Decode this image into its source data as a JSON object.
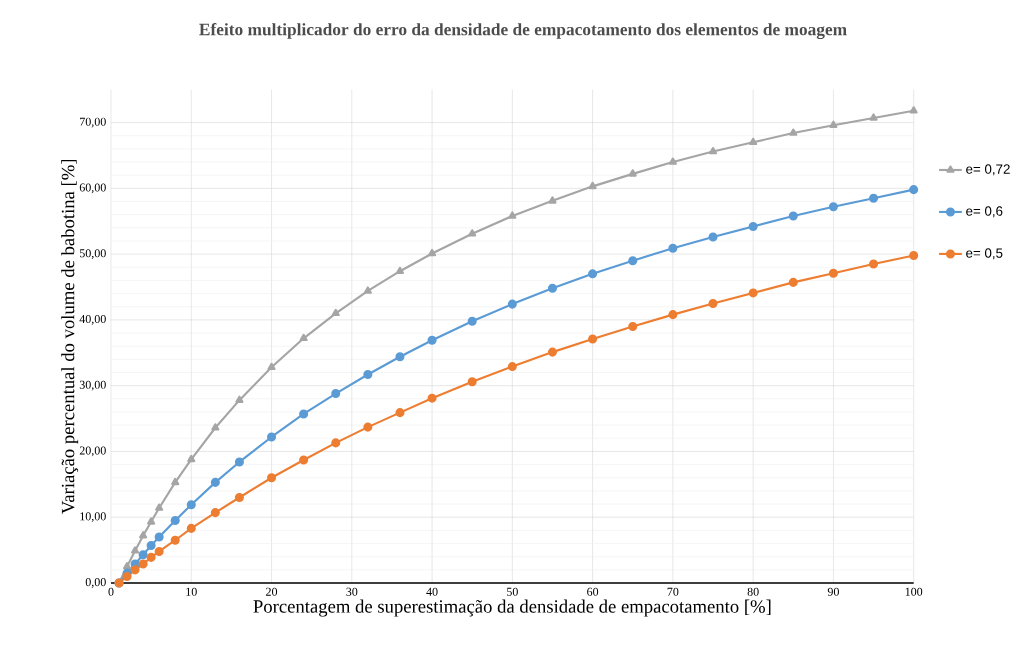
{
  "chart_data": {
    "type": "line",
    "title": "Efeito multiplicador do erro da densidade de empacotamento dos elementos de moagem",
    "xlabel": "Porcentagem de superestimação da densidade de empacotamento [%]",
    "ylabel": "Variação percentual do volume de babotina [%]",
    "x": [
      1,
      2,
      3,
      4,
      5,
      6,
      8,
      10,
      13,
      16,
      20,
      24,
      28,
      32,
      36,
      40,
      45,
      50,
      55,
      60,
      65,
      70,
      75,
      80,
      85,
      90,
      95,
      100
    ],
    "series": [
      {
        "name": "e= 0,72",
        "color": "#a5a5a5",
        "marker": "triangle",
        "values": [
          0,
          2.5,
          4.9,
          7.2,
          9.3,
          11.4,
          15.3,
          18.8,
          23.6,
          27.8,
          32.8,
          37.2,
          41.0,
          44.4,
          47.4,
          50.1,
          53.1,
          55.8,
          58.1,
          60.3,
          62.2,
          64.0,
          65.6,
          67.0,
          68.4,
          69.6,
          70.7,
          71.8
        ]
      },
      {
        "name": "e= 0,6",
        "color": "#5b9bd5",
        "marker": "circle",
        "values": [
          0,
          1.5,
          2.9,
          4.3,
          5.7,
          7.0,
          9.5,
          11.9,
          15.3,
          18.4,
          22.2,
          25.7,
          28.8,
          31.7,
          34.4,
          36.9,
          39.8,
          42.4,
          44.8,
          47.0,
          49.0,
          50.9,
          52.6,
          54.2,
          55.8,
          57.2,
          58.5,
          59.8
        ]
      },
      {
        "name": "e= 0,5",
        "color": "#ed7d31",
        "marker": "circle",
        "values": [
          0,
          1.0,
          2.0,
          2.9,
          3.9,
          4.8,
          6.5,
          8.3,
          10.7,
          13.0,
          16.0,
          18.7,
          21.3,
          23.7,
          25.9,
          28.1,
          30.6,
          32.9,
          35.1,
          37.1,
          39.0,
          40.8,
          42.5,
          44.1,
          45.7,
          47.1,
          48.5,
          49.8
        ]
      }
    ],
    "xlim": [
      0,
      100
    ],
    "xticks": [
      0,
      10,
      20,
      30,
      40,
      50,
      60,
      70,
      80,
      90,
      100
    ],
    "ylim": [
      0,
      75
    ],
    "yticks": [
      {
        "value": 0,
        "label": "0,00"
      },
      {
        "value": 10,
        "label": "10,00"
      },
      {
        "value": 20,
        "label": "20,00"
      },
      {
        "value": 30,
        "label": "30,00"
      },
      {
        "value": 40,
        "label": "40,00"
      },
      {
        "value": 50,
        "label": "50,00"
      },
      {
        "value": 60,
        "label": "60,00"
      },
      {
        "value": 70,
        "label": "70,00"
      }
    ],
    "grid": true,
    "legend": "right"
  }
}
